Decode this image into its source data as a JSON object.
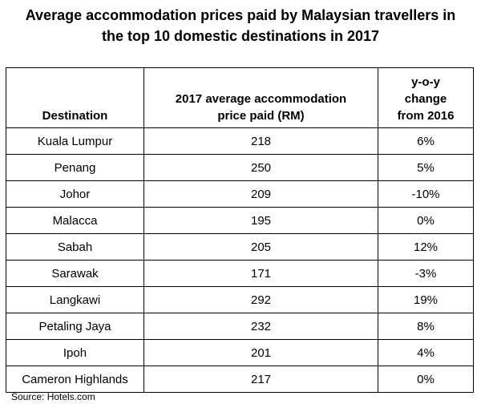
{
  "title": {
    "line1": "Average accommodation prices paid by Malaysian travellers in",
    "line2": "the top 10 domestic destinations in 2017"
  },
  "chart_data": {
    "type": "table",
    "title": "Average accommodation prices paid by Malaysian travellers in the top 10 domestic destinations in 2017",
    "columns": [
      "Destination",
      "2017 average accommodation price paid (RM)",
      "y-o-y change from 2016"
    ],
    "header_lines": {
      "destination": [
        "Destination"
      ],
      "price": [
        "2017 average accommodation",
        "price paid (RM)"
      ],
      "yoy": [
        "y-o-y",
        "change",
        "from 2016"
      ]
    },
    "rows": [
      {
        "destination": "Kuala Lumpur",
        "price": "218",
        "yoy": "6%"
      },
      {
        "destination": "Penang",
        "price": "250",
        "yoy": "5%"
      },
      {
        "destination": "Johor",
        "price": "209",
        "yoy": "-10%"
      },
      {
        "destination": "Malacca",
        "price": "195",
        "yoy": "0%"
      },
      {
        "destination": "Sabah",
        "price": "205",
        "yoy": "12%"
      },
      {
        "destination": "Sarawak",
        "price": "171",
        "yoy": "-3%"
      },
      {
        "destination": "Langkawi",
        "price": "292",
        "yoy": "19%"
      },
      {
        "destination": "Petaling Jaya",
        "price": "232",
        "yoy": "8%"
      },
      {
        "destination": "Ipoh",
        "price": "201",
        "yoy": "4%"
      },
      {
        "destination": "Cameron Highlands",
        "price": "217",
        "yoy": "0%"
      }
    ]
  },
  "source": "Source: Hotels.com"
}
